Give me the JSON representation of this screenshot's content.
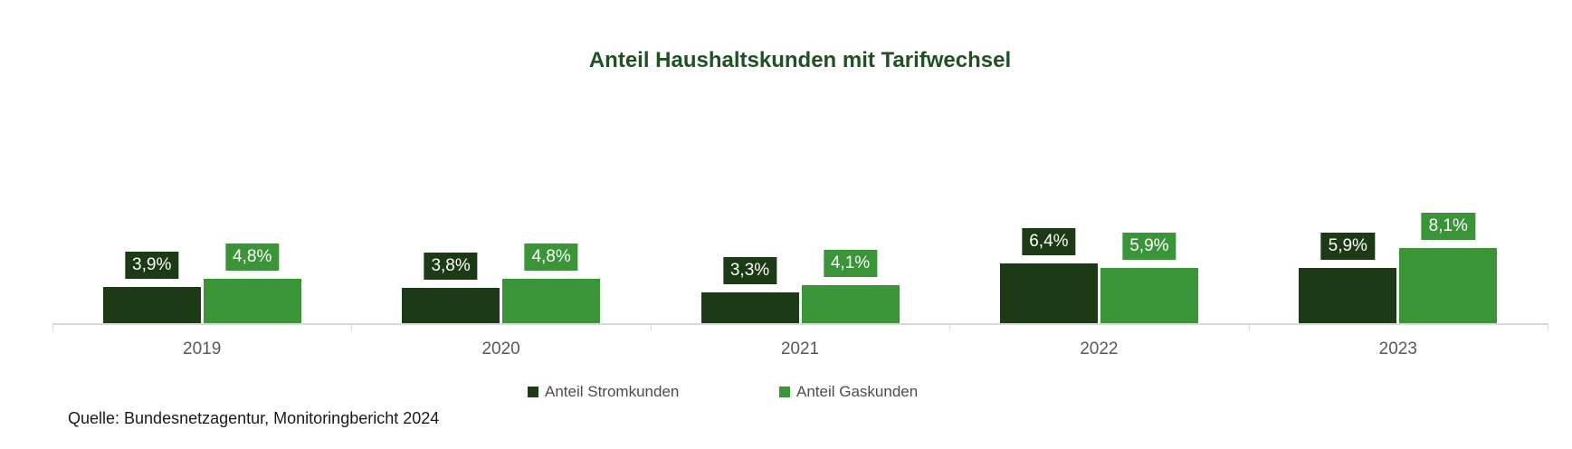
{
  "title": "Anteil Haushaltskunden mit Tarifwechsel",
  "source_note": "Quelle: Bundesnetzagentur, Monitoringbericht 2024",
  "colors": {
    "background": "#ffffff",
    "title_text": "#1e5222",
    "strom_series": "#1c3a15",
    "gas_series": "#3a9438",
    "axis_line": "#d9d9d9",
    "year_label_text": "#595959",
    "legend_text": "#4c4c4c",
    "value_label_text": "#ffffff"
  },
  "legend": {
    "items": [
      {
        "label": "Anteil Stromkunden",
        "color": "#1c3a15"
      },
      {
        "label": "Anteil Gaskunden",
        "color": "#3a9438"
      }
    ]
  },
  "chart_data": {
    "type": "bar",
    "title": "Anteil Haushaltskunden mit Tarifwechsel",
    "categories": [
      "2019",
      "2020",
      "2021",
      "2022",
      "2023"
    ],
    "series": [
      {
        "name": "Anteil Stromkunden",
        "color": "#1c3a15",
        "values": [
          3.9,
          3.8,
          3.3,
          6.4,
          5.9
        ],
        "labels": [
          "3,9%",
          "3,8%",
          "3,3%",
          "6,4%",
          "5,9%"
        ]
      },
      {
        "name": "Anteil Gaskunden",
        "color": "#3a9438",
        "values": [
          4.8,
          4.8,
          4.1,
          5.9,
          8.1
        ],
        "labels": [
          "4,8%",
          "4,8%",
          "4,1%",
          "5,9%",
          "8,1%"
        ]
      }
    ],
    "unit": "%",
    "value_format": "german_decimal_percent",
    "data_labels": true,
    "grid": false,
    "y_axis_visible": false,
    "ylim": [
      0,
      9
    ],
    "legend_position": "bottom",
    "source": "Quelle: Bundesnetzagentur, Monitoringbericht 2024"
  }
}
